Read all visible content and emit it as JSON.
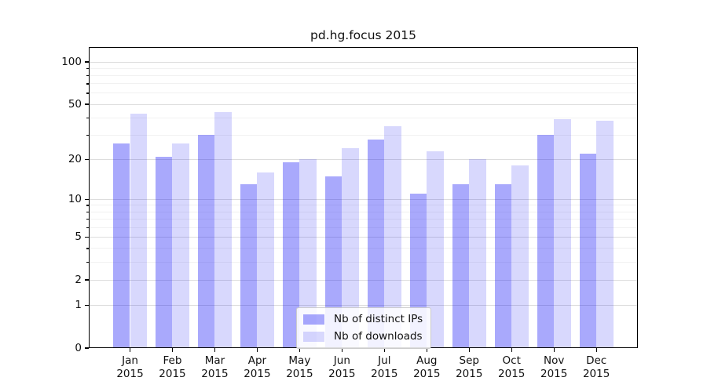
{
  "chart_data": {
    "type": "bar",
    "title": "pd.hg.focus 2015",
    "categories": [
      "Jan",
      "Feb",
      "Mar",
      "Apr",
      "May",
      "Jun",
      "Jul",
      "Aug",
      "Sep",
      "Oct",
      "Nov",
      "Dec"
    ],
    "year_label": "2015",
    "series": [
      {
        "name": "Nb of distinct IPs",
        "key": "distinct-ips",
        "color": "rgba(10,10,245,0.35)",
        "values": [
          26,
          21,
          30,
          13,
          19,
          15,
          28,
          11,
          13,
          13,
          30,
          22
        ]
      },
      {
        "name": "Nb of downloads",
        "key": "downloads",
        "color": "rgba(10,10,245,0.16)",
        "values": [
          43,
          26,
          44,
          16,
          20,
          24,
          35,
          23,
          20,
          18,
          39,
          38
        ]
      }
    ],
    "yscale": "log1p",
    "ylim": [
      0,
      127.5
    ],
    "y_major_ticks": [
      0,
      1,
      2,
      5,
      10,
      20,
      50,
      100
    ],
    "y_minor_gridlines": [
      3,
      4,
      6,
      7,
      8,
      9,
      30,
      40,
      60,
      70,
      80,
      90
    ],
    "grid": true,
    "grid_major_color": "#dddddd",
    "grid_minor_color": "#f1f1f1",
    "axis_color": "#000000",
    "text_color": "#111111",
    "legend_position": "lower center",
    "xlabel": "",
    "ylabel": ""
  }
}
